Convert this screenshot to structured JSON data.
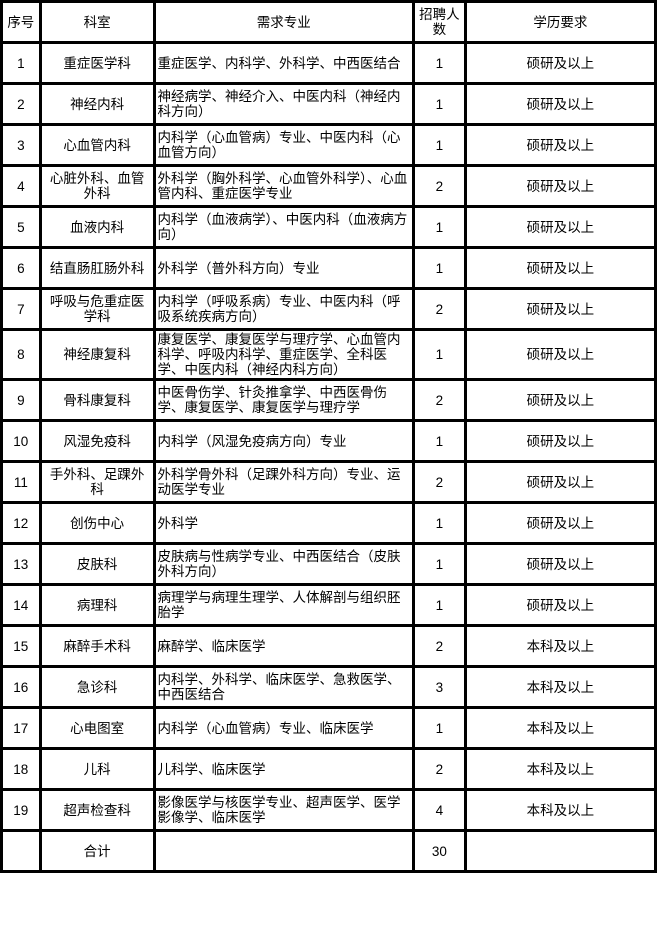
{
  "table": {
    "columns": [
      {
        "key": "no",
        "label": "序号"
      },
      {
        "key": "dept",
        "label": "科室"
      },
      {
        "key": "majors",
        "label": "需求专业"
      },
      {
        "key": "count",
        "label": "招聘人数"
      },
      {
        "key": "edu",
        "label": "学历要求"
      }
    ],
    "rows": [
      {
        "no": "1",
        "dept": "重症医学科",
        "majors": "重症医学、内科学、外科学、中西医结合",
        "count": "1",
        "edu": "硕研及以上"
      },
      {
        "no": "2",
        "dept": "神经内科",
        "majors": "神经病学、神经介入、中医内科（神经内科方向）",
        "count": "1",
        "edu": "硕研及以上"
      },
      {
        "no": "3",
        "dept": "心血管内科",
        "majors": "内科学（心血管病）专业、中医内科（心血管方向）",
        "count": "1",
        "edu": "硕研及以上"
      },
      {
        "no": "4",
        "dept": "心脏外科、血管外科",
        "majors": "外科学（胸外科学、心血管外科学）、心血管内科、重症医学专业",
        "count": "2",
        "edu": "硕研及以上"
      },
      {
        "no": "5",
        "dept": "血液内科",
        "majors": "内科学（血液病学）、中医内科（血液病方向）",
        "count": "1",
        "edu": "硕研及以上"
      },
      {
        "no": "6",
        "dept": "结直肠肛肠外科",
        "majors": "外科学（普外科方向）专业",
        "count": "1",
        "edu": "硕研及以上"
      },
      {
        "no": "7",
        "dept": "呼吸与危重症医学科",
        "majors": "内科学（呼吸系病）专业、中医内科（呼吸系统疾病方向）",
        "count": "2",
        "edu": "硕研及以上"
      },
      {
        "no": "8",
        "dept": "神经康复科",
        "majors": "康复医学、康复医学与理疗学、心血管内科学、呼吸内科学、重症医学、全科医学、中医内科（神经内科方向）",
        "count": "1",
        "edu": "硕研及以上"
      },
      {
        "no": "9",
        "dept": "骨科康复科",
        "majors": "中医骨伤学、针灸推拿学、中西医骨伤学、康复医学、康复医学与理疗学",
        "count": "2",
        "edu": "硕研及以上"
      },
      {
        "no": "10",
        "dept": "风湿免疫科",
        "majors": "内科学（风湿免疫病方向）专业",
        "count": "1",
        "edu": "硕研及以上"
      },
      {
        "no": "11",
        "dept": "手外科、足踝外科",
        "majors": "外科学骨外科（足踝外科方向）专业、运动医学专业",
        "count": "2",
        "edu": "硕研及以上"
      },
      {
        "no": "12",
        "dept": "创伤中心",
        "majors": "外科学",
        "count": "1",
        "edu": "硕研及以上"
      },
      {
        "no": "13",
        "dept": "皮肤科",
        "majors": "皮肤病与性病学专业、中西医结合（皮肤外科方向）",
        "count": "1",
        "edu": "硕研及以上"
      },
      {
        "no": "14",
        "dept": "病理科",
        "majors": "病理学与病理生理学、人体解剖与组织胚胎学",
        "count": "1",
        "edu": "硕研及以上"
      },
      {
        "no": "15",
        "dept": "麻醉手术科",
        "majors": "麻醉学、临床医学",
        "count": "2",
        "edu": "本科及以上"
      },
      {
        "no": "16",
        "dept": "急诊科",
        "majors": "内科学、外科学、临床医学、急救医学、中西医结合",
        "count": "3",
        "edu": "本科及以上"
      },
      {
        "no": "17",
        "dept": "心电图室",
        "majors": "内科学（心血管病）专业、临床医学",
        "count": "1",
        "edu": "本科及以上"
      },
      {
        "no": "18",
        "dept": "儿科",
        "majors": "儿科学、临床医学",
        "count": "2",
        "edu": "本科及以上"
      },
      {
        "no": "19",
        "dept": "超声检查科",
        "majors": "影像医学与核医学专业、超声医学、医学影像学、临床医学",
        "count": "4",
        "edu": "本科及以上"
      }
    ],
    "footer": {
      "no": "",
      "dept": "合计",
      "majors": "",
      "count": "30",
      "edu": ""
    },
    "colors": {
      "border": "#000000",
      "background": "#ffffff",
      "text": "#000000"
    }
  }
}
